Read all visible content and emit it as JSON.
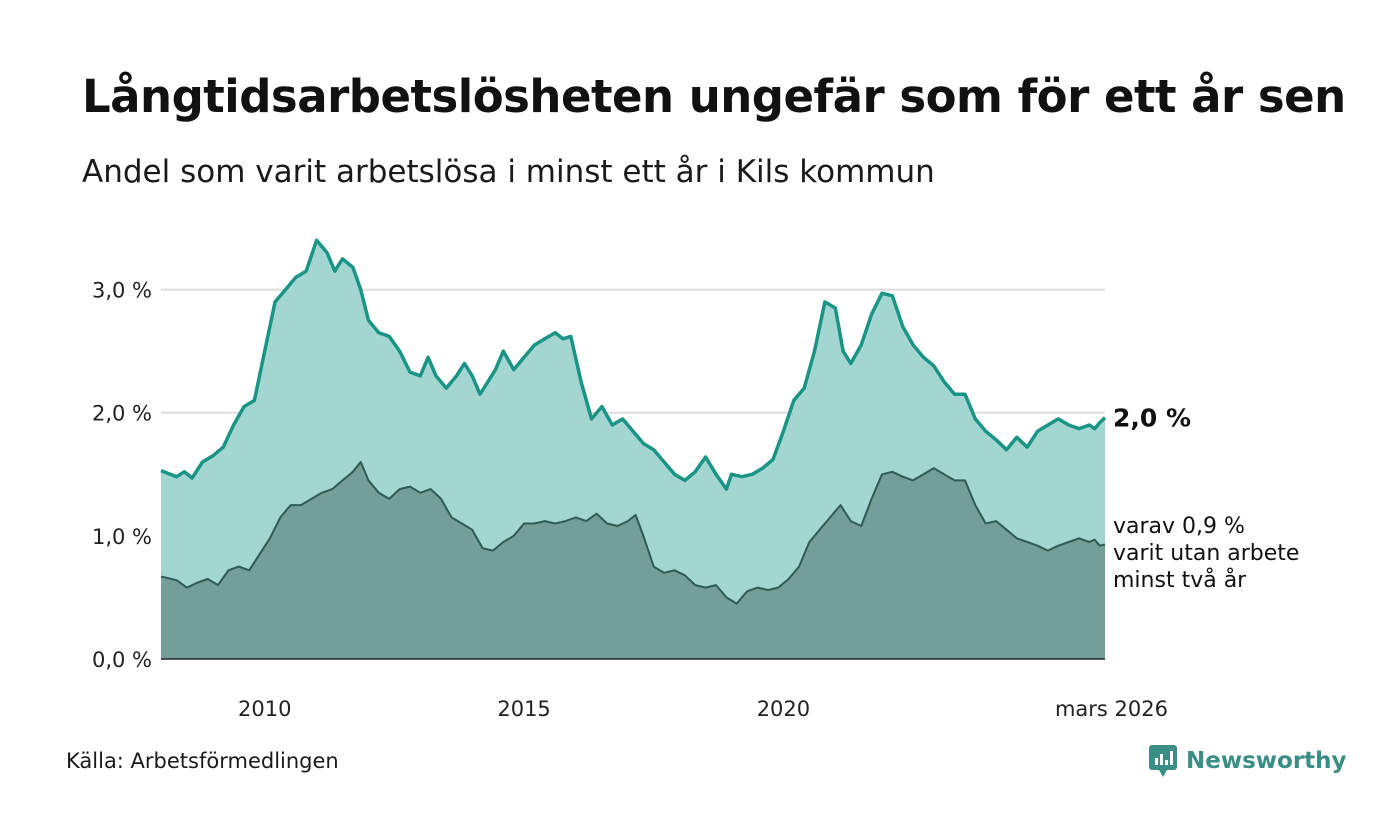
{
  "title": "Långtidsarbetslösheten ungefär som för ett år sen",
  "subtitle": "Andel som varit arbetslösa i minst ett år i Kils kommun",
  "source": "Källa: Arbetsförmedlingen",
  "brand": "Newsworthy",
  "colors": {
    "upper_line": "#1a9484",
    "upper_fill": "#a3d6d1",
    "lower_line": "#2e5b55",
    "lower_fill": "#739f98",
    "grid": "#dddddd"
  },
  "chart_data": {
    "type": "area",
    "title": "Långtidsarbetslösheten ungefär som för ett år sen",
    "ylim": [
      0,
      3.5
    ],
    "xlim": [
      2008.0,
      2026.2
    ],
    "y_ticks": [
      {
        "value": 0,
        "label": "0,0 %"
      },
      {
        "value": 1,
        "label": "1,0 %"
      },
      {
        "value": 2,
        "label": "2,0 %"
      },
      {
        "value": 3,
        "label": "3,0 %"
      }
    ],
    "x_ticks": [
      {
        "value": 2010,
        "label": "2010"
      },
      {
        "value": 2015,
        "label": "2015"
      },
      {
        "value": 2020,
        "label": "2020"
      },
      {
        "value": 2026.2,
        "label": "mars 2026"
      }
    ],
    "end_labels": {
      "upper": "2,0 %",
      "lower_lines": [
        "varav 0,9 %",
        "varit utan arbete",
        "minst två år"
      ]
    },
    "series": [
      {
        "name": "Arbetslösa minst ett år",
        "x": [
          2008.0,
          2008.3,
          2008.45,
          2008.6,
          2008.8,
          2009.0,
          2009.2,
          2009.4,
          2009.6,
          2009.8,
          2010.0,
          2010.2,
          2010.4,
          2010.6,
          2010.8,
          2011.0,
          2011.2,
          2011.35,
          2011.5,
          2011.7,
          2011.85,
          2012.0,
          2012.2,
          2012.4,
          2012.6,
          2012.8,
          2013.0,
          2013.15,
          2013.3,
          2013.5,
          2013.7,
          2013.85,
          2014.0,
          2014.15,
          2014.3,
          2014.45,
          2014.6,
          2014.8,
          2015.0,
          2015.2,
          2015.4,
          2015.6,
          2015.75,
          2015.9,
          2016.1,
          2016.3,
          2016.5,
          2016.7,
          2016.9,
          2017.1,
          2017.3,
          2017.5,
          2017.7,
          2017.9,
          2018.1,
          2018.3,
          2018.5,
          2018.7,
          2018.9,
          2019.0,
          2019.2,
          2019.4,
          2019.6,
          2019.8,
          2020.0,
          2020.2,
          2020.4,
          2020.6,
          2020.8,
          2021.0,
          2021.15,
          2021.3,
          2021.5,
          2021.7,
          2021.9,
          2022.1,
          2022.3,
          2022.5,
          2022.7,
          2022.9,
          2023.1,
          2023.3,
          2023.5,
          2023.7,
          2023.9,
          2024.1,
          2024.3,
          2024.5,
          2024.7,
          2024.9,
          2025.1,
          2025.3,
          2025.5,
          2025.7,
          2025.9,
          2026.0,
          2026.1,
          2026.2
        ],
        "values": [
          1.53,
          1.48,
          1.52,
          1.47,
          1.6,
          1.65,
          1.72,
          1.9,
          2.05,
          2.1,
          2.5,
          2.9,
          3.0,
          3.1,
          3.15,
          3.4,
          3.3,
          3.15,
          3.25,
          3.18,
          3.0,
          2.75,
          2.65,
          2.62,
          2.5,
          2.33,
          2.3,
          2.45,
          2.3,
          2.2,
          2.3,
          2.4,
          2.3,
          2.15,
          2.25,
          2.35,
          2.5,
          2.35,
          2.45,
          2.55,
          2.6,
          2.65,
          2.6,
          2.62,
          2.25,
          1.95,
          2.05,
          1.9,
          1.95,
          1.85,
          1.75,
          1.7,
          1.6,
          1.5,
          1.45,
          1.52,
          1.64,
          1.5,
          1.38,
          1.5,
          1.48,
          1.5,
          1.55,
          1.62,
          1.85,
          2.1,
          2.2,
          2.5,
          2.9,
          2.85,
          2.5,
          2.4,
          2.55,
          2.8,
          2.97,
          2.95,
          2.7,
          2.55,
          2.45,
          2.38,
          2.25,
          2.15,
          2.15,
          1.95,
          1.85,
          1.78,
          1.7,
          1.8,
          1.72,
          1.85,
          1.9,
          1.95,
          1.9,
          1.87,
          1.9,
          1.87,
          1.92,
          1.96
        ]
      },
      {
        "name": "varav utan arbete minst två år",
        "x": [
          2008.0,
          2008.3,
          2008.5,
          2008.7,
          2008.9,
          2009.1,
          2009.3,
          2009.5,
          2009.7,
          2009.9,
          2010.1,
          2010.3,
          2010.5,
          2010.7,
          2010.9,
          2011.1,
          2011.3,
          2011.5,
          2011.7,
          2011.85,
          2012.0,
          2012.2,
          2012.4,
          2012.6,
          2012.8,
          2013.0,
          2013.2,
          2013.4,
          2013.6,
          2013.8,
          2014.0,
          2014.2,
          2014.4,
          2014.6,
          2014.8,
          2015.0,
          2015.2,
          2015.4,
          2015.6,
          2015.8,
          2016.0,
          2016.2,
          2016.4,
          2016.6,
          2016.8,
          2017.0,
          2017.15,
          2017.3,
          2017.5,
          2017.7,
          2017.9,
          2018.1,
          2018.3,
          2018.5,
          2018.7,
          2018.9,
          2019.1,
          2019.3,
          2019.5,
          2019.7,
          2019.9,
          2020.1,
          2020.3,
          2020.5,
          2020.7,
          2020.9,
          2021.1,
          2021.3,
          2021.5,
          2021.7,
          2021.9,
          2022.1,
          2022.3,
          2022.5,
          2022.7,
          2022.9,
          2023.1,
          2023.3,
          2023.5,
          2023.7,
          2023.9,
          2024.1,
          2024.3,
          2024.5,
          2024.7,
          2024.9,
          2025.1,
          2025.3,
          2025.5,
          2025.7,
          2025.9,
          2026.0,
          2026.1,
          2026.2
        ],
        "values": [
          0.67,
          0.64,
          0.58,
          0.62,
          0.65,
          0.6,
          0.72,
          0.75,
          0.72,
          0.85,
          0.98,
          1.15,
          1.25,
          1.25,
          1.3,
          1.35,
          1.38,
          1.45,
          1.52,
          1.6,
          1.45,
          1.35,
          1.3,
          1.38,
          1.4,
          1.35,
          1.38,
          1.3,
          1.15,
          1.1,
          1.05,
          0.9,
          0.88,
          0.95,
          1.0,
          1.1,
          1.1,
          1.12,
          1.1,
          1.12,
          1.15,
          1.12,
          1.18,
          1.1,
          1.08,
          1.12,
          1.17,
          1.0,
          0.75,
          0.7,
          0.72,
          0.68,
          0.6,
          0.58,
          0.6,
          0.5,
          0.45,
          0.55,
          0.58,
          0.56,
          0.58,
          0.65,
          0.75,
          0.95,
          1.05,
          1.15,
          1.25,
          1.12,
          1.08,
          1.3,
          1.5,
          1.52,
          1.48,
          1.45,
          1.5,
          1.55,
          1.5,
          1.45,
          1.45,
          1.25,
          1.1,
          1.12,
          1.05,
          0.98,
          0.95,
          0.92,
          0.88,
          0.92,
          0.95,
          0.98,
          0.95,
          0.97,
          0.92,
          0.93
        ]
      }
    ]
  }
}
